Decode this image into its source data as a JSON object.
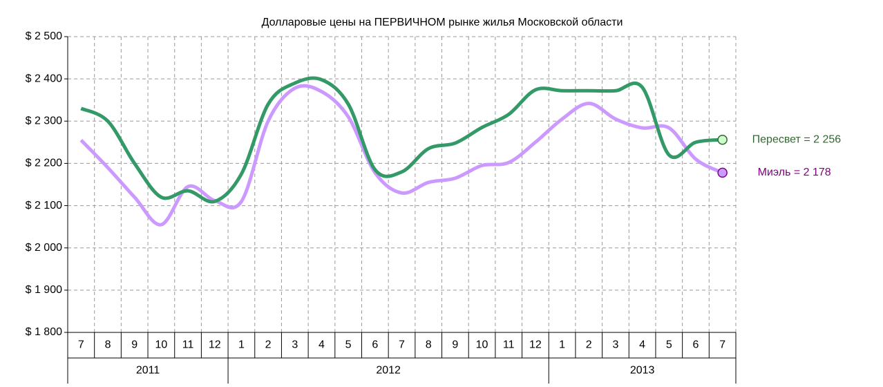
{
  "chart_data": {
    "type": "line",
    "title": "Долларовые цены на ПЕРВИЧНОМ рынке жилья Московской области",
    "groups": [
      {
        "name": "2011",
        "categories": [
          "7",
          "8",
          "9",
          "10",
          "11",
          "12"
        ]
      },
      {
        "name": "2012",
        "categories": [
          "1",
          "2",
          "3",
          "4",
          "5",
          "6",
          "7",
          "8",
          "9",
          "10",
          "11",
          "12"
        ]
      },
      {
        "name": "2013",
        "categories": [
          "1",
          "2",
          "3",
          "4",
          "5",
          "6",
          "7"
        ]
      }
    ],
    "series": [
      {
        "name": "Пересвет = 2 256",
        "color": "#339966",
        "marker_fill": "#ccffcc",
        "label_color": "#336633",
        "values": [
          2330,
          2300,
          2200,
          2120,
          2135,
          2110,
          2175,
          2340,
          2390,
          2398,
          2340,
          2185,
          2180,
          2235,
          2248,
          2285,
          2316,
          2374,
          2372,
          2372,
          2372,
          2380,
          2220,
          2250,
          2256
        ]
      },
      {
        "name": "Миэль = 2 178",
        "color": "#cc99ff",
        "marker_fill": "#cc99ff",
        "label_color": "#800080",
        "values": [
          2255,
          2190,
          2120,
          2055,
          2145,
          2112,
          2110,
          2300,
          2378,
          2370,
          2310,
          2178,
          2130,
          2155,
          2165,
          2195,
          2202,
          2250,
          2305,
          2342,
          2305,
          2284,
          2284,
          2210,
          2178
        ]
      }
    ],
    "ylim": [
      1800,
      2500
    ],
    "yticks": [
      {
        "value": 1800,
        "label": "$ 1 800"
      },
      {
        "value": 1900,
        "label": "$ 1 900"
      },
      {
        "value": 2000,
        "label": "$ 2 000"
      },
      {
        "value": 2100,
        "label": "$ 2 100"
      },
      {
        "value": 2200,
        "label": "$ 2 200"
      },
      {
        "value": 2300,
        "label": "$ 2 300"
      },
      {
        "value": 2400,
        "label": "$ 2 400"
      },
      {
        "value": 2500,
        "label": "$ 2 500"
      }
    ],
    "grid": true
  }
}
